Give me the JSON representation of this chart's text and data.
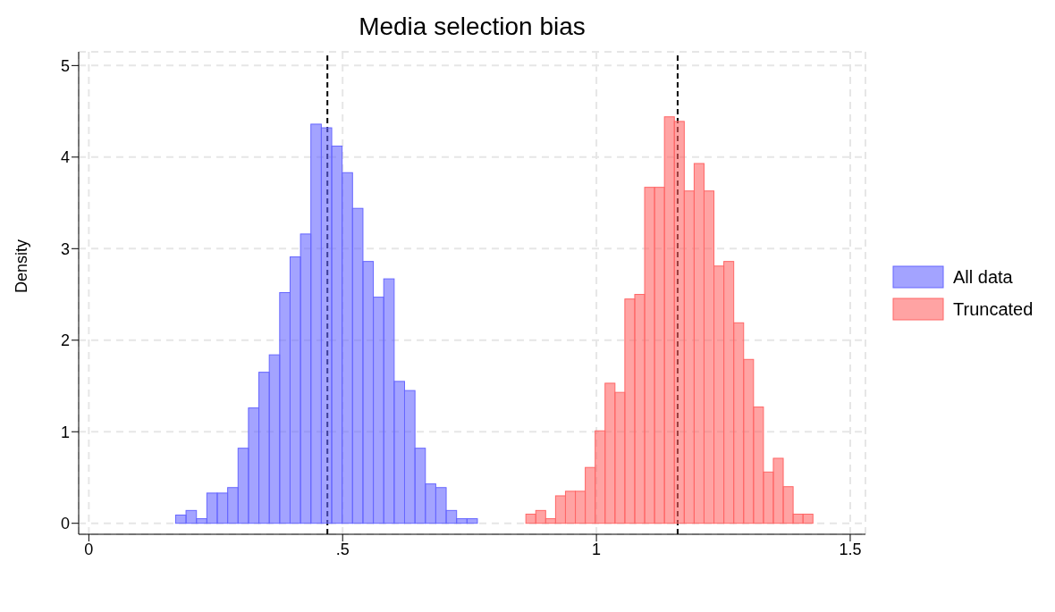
{
  "chart_data": {
    "type": "histogram",
    "title": "Media selection bias",
    "ylabel": "Density",
    "xlim": [
      -0.02,
      1.53
    ],
    "xticks": [
      0,
      {
        "value": 0.5,
        "label": ".5"
      },
      1,
      1.5
    ],
    "ylim": [
      -0.12,
      5.15
    ],
    "yticks": [
      0,
      1,
      2,
      3,
      4,
      5
    ],
    "grid": true,
    "legend": "right",
    "bins": [
      0.171,
      0.1915,
      0.212,
      0.2325,
      0.253,
      0.2735,
      0.294,
      0.3145,
      0.335,
      0.3555,
      0.376,
      0.3965,
      0.417,
      0.4375,
      0.458,
      0.4785,
      0.499,
      0.5195,
      0.54,
      0.5605,
      0.581,
      0.6015,
      0.622,
      0.6425,
      0.663,
      0.6835,
      0.704,
      0.7245,
      0.745,
      0.7655,
      0.861,
      0.8805,
      0.9,
      0.9195,
      0.939,
      0.9585,
      0.978,
      0.9975,
      1.017,
      1.0365,
      1.056,
      1.0755,
      1.095,
      1.1145,
      1.134,
      1.1535,
      1.173,
      1.1925,
      1.212,
      1.2315,
      1.251,
      1.2705,
      1.29,
      1.3095,
      1.329,
      1.3485,
      1.368,
      1.3875,
      1.407,
      1.4265
    ],
    "series": [
      {
        "name": "All data",
        "color": "#6666ff",
        "values": [
          0.09,
          0.14,
          0.05,
          0.33,
          0.33,
          0.39,
          0.82,
          1.26,
          1.65,
          1.84,
          2.52,
          2.91,
          3.16,
          4.36,
          4.32,
          4.12,
          3.83,
          3.44,
          2.86,
          2.47,
          2.67,
          1.55,
          1.45,
          0.82,
          0.43,
          0.39,
          0.14,
          0.05,
          0.05,
          null,
          null,
          null,
          null,
          null,
          null,
          null,
          null,
          null,
          null,
          null,
          null,
          null,
          null,
          null,
          null,
          null,
          null,
          null,
          null,
          null,
          null,
          null,
          null,
          null,
          null,
          null,
          null,
          null,
          null
        ]
      },
      {
        "name": "Truncated",
        "color": "#ff6666",
        "values": [
          null,
          null,
          null,
          null,
          null,
          null,
          null,
          null,
          null,
          null,
          null,
          null,
          null,
          null,
          null,
          null,
          null,
          null,
          null,
          null,
          null,
          null,
          null,
          null,
          null,
          null,
          null,
          null,
          null,
          null,
          0.1,
          0.14,
          0.05,
          0.3,
          0.35,
          0.35,
          0.61,
          1.01,
          1.53,
          1.43,
          2.45,
          2.5,
          3.67,
          3.67,
          4.44,
          4.39,
          3.63,
          3.93,
          3.63,
          2.81,
          2.86,
          2.19,
          1.79,
          1.27,
          0.56,
          0.71,
          0.4,
          0.1,
          0.1
        ]
      }
    ],
    "ref_lines": [
      {
        "axis": "x",
        "value": 0.47,
        "color": "#000000",
        "line_style": "dashed"
      },
      {
        "axis": "x",
        "value": 1.16,
        "color": "#000000",
        "line_style": "dashed"
      }
    ]
  }
}
